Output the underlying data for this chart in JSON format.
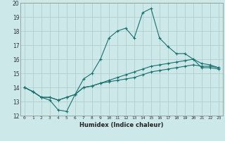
{
  "title": "",
  "xlabel": "Humidex (Indice chaleur)",
  "ylabel": "",
  "xlim": [
    -0.5,
    23.5
  ],
  "ylim": [
    12,
    20
  ],
  "yticks": [
    12,
    13,
    14,
    15,
    16,
    17,
    18,
    19,
    20
  ],
  "xticks": [
    0,
    1,
    2,
    3,
    4,
    5,
    6,
    7,
    8,
    9,
    10,
    11,
    12,
    13,
    14,
    15,
    16,
    17,
    18,
    19,
    20,
    21,
    22,
    23
  ],
  "background_color": "#cce8e8",
  "grid_color": "#aacccc",
  "line_color": "#1a7070",
  "lines": [
    [
      14.0,
      13.7,
      13.3,
      13.1,
      12.4,
      12.3,
      13.5,
      14.6,
      15.0,
      16.0,
      17.5,
      18.0,
      18.2,
      17.5,
      19.3,
      19.6,
      17.5,
      16.9,
      16.4,
      16.4,
      16.0,
      15.4,
      15.4,
      15.3
    ],
    [
      14.0,
      13.7,
      13.3,
      13.3,
      13.1,
      13.3,
      13.5,
      14.0,
      14.1,
      14.3,
      14.4,
      14.5,
      14.6,
      14.7,
      14.9,
      15.1,
      15.2,
      15.3,
      15.4,
      15.5,
      15.6,
      15.5,
      15.5,
      15.4
    ],
    [
      14.0,
      13.7,
      13.3,
      13.3,
      13.1,
      13.3,
      13.5,
      14.0,
      14.1,
      14.3,
      14.5,
      14.7,
      14.9,
      15.1,
      15.3,
      15.5,
      15.6,
      15.7,
      15.8,
      15.9,
      16.0,
      15.7,
      15.6,
      15.4
    ]
  ]
}
